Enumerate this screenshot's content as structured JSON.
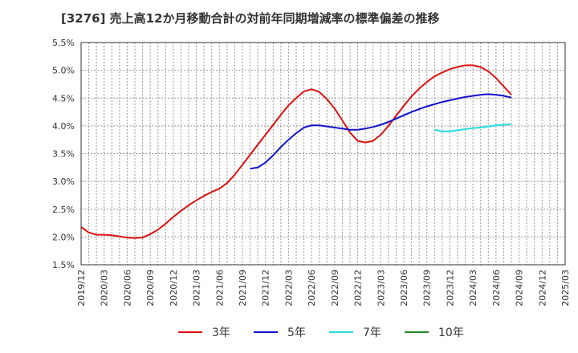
{
  "chart_data": {
    "type": "line",
    "title": "[3276]  売上高12か月移動合計の対前年同期増減率の標準偏差の推移",
    "xlabel": "",
    "ylabel": "",
    "ylim": [
      1.5,
      5.5
    ],
    "y_ticks": [
      "1.5%",
      "2.0%",
      "2.5%",
      "3.0%",
      "3.5%",
      "4.0%",
      "4.5%",
      "5.0%",
      "5.5%"
    ],
    "x_ticks": [
      "2019/12",
      "2020/03",
      "2020/06",
      "2020/09",
      "2020/12",
      "2021/03",
      "2021/06",
      "2021/09",
      "2021/12",
      "2022/03",
      "2022/06",
      "2022/09",
      "2022/12",
      "2023/03",
      "2023/06",
      "2023/09",
      "2023/12",
      "2024/03",
      "2024/06",
      "2024/09",
      "2024/12",
      "2025/03"
    ],
    "grid": true,
    "legend_position": "bottom",
    "series": [
      {
        "name": "3年",
        "color": "#dd1111",
        "points": [
          [
            "2019/12",
            2.18
          ],
          [
            "2020/01",
            2.08
          ],
          [
            "2020/02",
            2.04
          ],
          [
            "2020/03",
            2.04
          ],
          [
            "2020/04",
            2.03
          ],
          [
            "2020/05",
            2.01
          ],
          [
            "2020/06",
            1.99
          ],
          [
            "2020/07",
            1.98
          ],
          [
            "2020/08",
            1.99
          ],
          [
            "2020/09",
            2.05
          ],
          [
            "2020/10",
            2.13
          ],
          [
            "2020/11",
            2.24
          ],
          [
            "2020/12",
            2.36
          ],
          [
            "2021/01",
            2.47
          ],
          [
            "2021/02",
            2.57
          ],
          [
            "2021/03",
            2.66
          ],
          [
            "2021/04",
            2.74
          ],
          [
            "2021/05",
            2.81
          ],
          [
            "2021/06",
            2.87
          ],
          [
            "2021/07",
            2.97
          ],
          [
            "2021/08",
            3.12
          ],
          [
            "2021/09",
            3.3
          ],
          [
            "2021/10",
            3.48
          ],
          [
            "2021/11",
            3.66
          ],
          [
            "2021/12",
            3.84
          ],
          [
            "2022/01",
            4.02
          ],
          [
            "2022/02",
            4.2
          ],
          [
            "2022/03",
            4.37
          ],
          [
            "2022/04",
            4.5
          ],
          [
            "2022/05",
            4.62
          ],
          [
            "2022/06",
            4.66
          ],
          [
            "2022/07",
            4.61
          ],
          [
            "2022/08",
            4.48
          ],
          [
            "2022/09",
            4.31
          ],
          [
            "2022/10",
            4.1
          ],
          [
            "2022/11",
            3.88
          ],
          [
            "2022/12",
            3.73
          ],
          [
            "2023/01",
            3.7
          ],
          [
            "2023/02",
            3.73
          ],
          [
            "2023/03",
            3.84
          ],
          [
            "2023/04",
            4.0
          ],
          [
            "2023/05",
            4.18
          ],
          [
            "2023/06",
            4.36
          ],
          [
            "2023/07",
            4.53
          ],
          [
            "2023/08",
            4.67
          ],
          [
            "2023/09",
            4.79
          ],
          [
            "2023/10",
            4.89
          ],
          [
            "2023/11",
            4.96
          ],
          [
            "2023/12",
            5.02
          ],
          [
            "2024/01",
            5.06
          ],
          [
            "2024/02",
            5.09
          ],
          [
            "2024/03",
            5.09
          ],
          [
            "2024/04",
            5.06
          ],
          [
            "2024/05",
            4.98
          ],
          [
            "2024/06",
            4.86
          ],
          [
            "2024/07",
            4.71
          ],
          [
            "2024/08",
            4.56
          ]
        ]
      },
      {
        "name": "5年",
        "color": "#1111cc",
        "points": [
          [
            "2021/10",
            3.23
          ],
          [
            "2021/11",
            3.25
          ],
          [
            "2021/12",
            3.34
          ],
          [
            "2022/01",
            3.47
          ],
          [
            "2022/02",
            3.62
          ],
          [
            "2022/03",
            3.75
          ],
          [
            "2022/04",
            3.87
          ],
          [
            "2022/05",
            3.97
          ],
          [
            "2022/06",
            4.01
          ],
          [
            "2022/07",
            4.01
          ],
          [
            "2022/08",
            3.99
          ],
          [
            "2022/09",
            3.97
          ],
          [
            "2022/10",
            3.95
          ],
          [
            "2022/11",
            3.93
          ],
          [
            "2022/12",
            3.93
          ],
          [
            "2023/01",
            3.95
          ],
          [
            "2023/02",
            3.98
          ],
          [
            "2023/03",
            4.02
          ],
          [
            "2023/04",
            4.07
          ],
          [
            "2023/05",
            4.13
          ],
          [
            "2023/06",
            4.19
          ],
          [
            "2023/07",
            4.25
          ],
          [
            "2023/08",
            4.3
          ],
          [
            "2023/09",
            4.35
          ],
          [
            "2023/10",
            4.39
          ],
          [
            "2023/11",
            4.43
          ],
          [
            "2023/12",
            4.46
          ],
          [
            "2024/01",
            4.49
          ],
          [
            "2024/02",
            4.52
          ],
          [
            "2024/03",
            4.54
          ],
          [
            "2024/04",
            4.56
          ],
          [
            "2024/05",
            4.57
          ],
          [
            "2024/06",
            4.56
          ],
          [
            "2024/07",
            4.54
          ],
          [
            "2024/08",
            4.51
          ]
        ]
      },
      {
        "name": "7年",
        "color": "#22dddd",
        "points": [
          [
            "2023/10",
            3.93
          ],
          [
            "2023/11",
            3.9
          ],
          [
            "2023/12",
            3.9
          ],
          [
            "2024/01",
            3.92
          ],
          [
            "2024/02",
            3.94
          ],
          [
            "2024/03",
            3.96
          ],
          [
            "2024/04",
            3.97
          ],
          [
            "2024/05",
            3.99
          ],
          [
            "2024/06",
            4.01
          ],
          [
            "2024/07",
            4.02
          ],
          [
            "2024/08",
            4.03
          ]
        ]
      },
      {
        "name": "10年",
        "color": "#228822",
        "points": []
      }
    ]
  }
}
